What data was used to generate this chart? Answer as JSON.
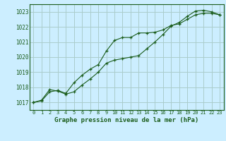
{
  "background_color": "#cceeff",
  "grid_color": "#aacccc",
  "line_color": "#1a5c1a",
  "title": "Graphe pression niveau de la mer (hPa)",
  "ylim": [
    1016.5,
    1023.5
  ],
  "xlim": [
    -0.5,
    23.5
  ],
  "yticks": [
    1017,
    1018,
    1019,
    1020,
    1021,
    1022,
    1023
  ],
  "xticks": [
    0,
    1,
    2,
    3,
    4,
    5,
    6,
    7,
    8,
    9,
    10,
    11,
    12,
    13,
    14,
    15,
    16,
    17,
    18,
    19,
    20,
    21,
    22,
    23
  ],
  "series1_x": [
    0,
    1,
    2,
    3,
    4,
    5,
    6,
    7,
    8,
    9,
    10,
    11,
    12,
    13,
    14,
    15,
    16,
    17,
    18,
    19,
    20,
    21,
    22,
    23
  ],
  "series1_y": [
    1017.0,
    1017.1,
    1017.7,
    1017.8,
    1017.6,
    1018.3,
    1018.8,
    1019.2,
    1019.5,
    1020.4,
    1021.1,
    1021.3,
    1021.3,
    1021.6,
    1021.6,
    1021.65,
    1021.8,
    1022.1,
    1022.2,
    1022.5,
    1022.8,
    1022.9,
    1022.9,
    1022.8
  ],
  "series2_x": [
    0,
    1,
    2,
    3,
    4,
    5,
    6,
    7,
    8,
    9,
    10,
    11,
    12,
    13,
    14,
    15,
    16,
    17,
    18,
    19,
    20,
    21,
    22,
    23
  ],
  "series2_y": [
    1017.0,
    1017.15,
    1017.85,
    1017.75,
    1017.55,
    1017.7,
    1018.15,
    1018.55,
    1019.0,
    1019.6,
    1019.8,
    1019.9,
    1020.0,
    1020.1,
    1020.55,
    1021.0,
    1021.5,
    1022.05,
    1022.3,
    1022.7,
    1023.05,
    1023.1,
    1023.0,
    1022.8
  ]
}
